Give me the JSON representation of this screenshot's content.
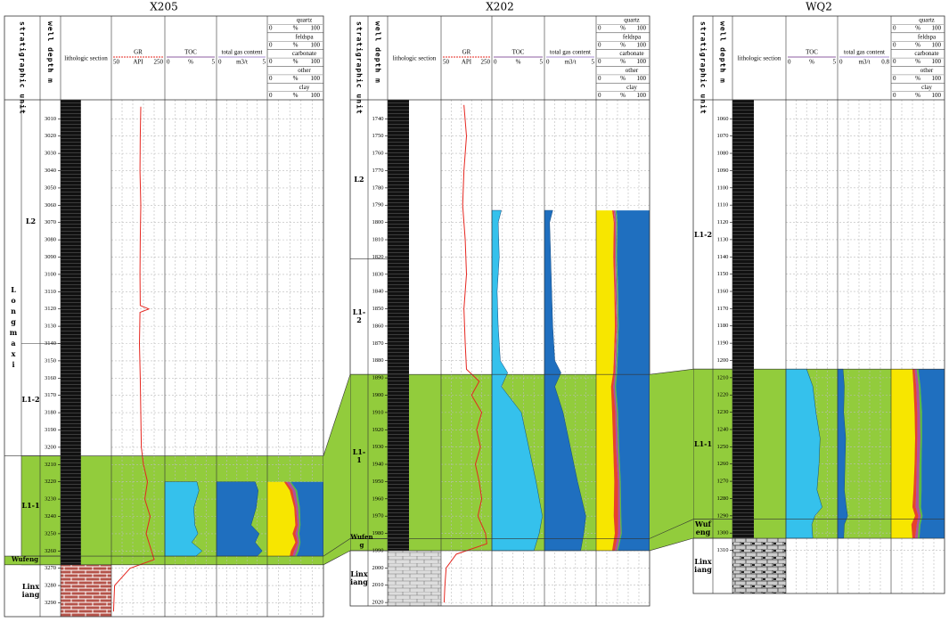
{
  "columns": {
    "strat": "stratigraphic unit",
    "depth": "well depth m",
    "litho": "lithologic section",
    "gr": {
      "name": "GR",
      "min": 50,
      "unit": "API",
      "max": 250,
      "color": "#e5261f"
    },
    "toc": {
      "name": "TOC",
      "min": 0,
      "unit": "%",
      "max": 5,
      "color": "#35c1ec"
    },
    "gas": {
      "name": "total gas content",
      "min": 0,
      "unit": "m3/t",
      "color": "#1f6fbf"
    },
    "minerals": [
      {
        "name": "quartz",
        "color": "#f7e600"
      },
      {
        "name": "feldspa",
        "color": "#e8412c"
      },
      {
        "name": "carbonate",
        "color": "#b04fa0"
      },
      {
        "name": "other",
        "color": "#58b947"
      },
      {
        "name": "clay",
        "color": "#1f6fbf"
      }
    ],
    "mineral_scale": {
      "min": 0,
      "unit": "%",
      "max": 100
    },
    "zone_color": "#92cc3c"
  },
  "wells": [
    {
      "name": "X205",
      "gas_max": 5,
      "depth_range": [
        2999,
        3298
      ],
      "depth_ticks": [
        3010,
        3020,
        3030,
        3040,
        3050,
        3060,
        3070,
        3080,
        3090,
        3100,
        3110,
        3120,
        3130,
        3140,
        3150,
        3160,
        3170,
        3180,
        3190,
        3200,
        3210,
        3220,
        3230,
        3240,
        3250,
        3260,
        3270,
        3280,
        3290
      ],
      "group": {
        "label": "Longmaxi",
        "top": 2999,
        "bottom": 3263
      },
      "units": [
        {
          "label": "L2",
          "top": 2999
        },
        {
          "label": "L1-2",
          "top": 3140
        },
        {
          "label": "L1-1",
          "top": 3205
        },
        {
          "label": "Wufeng",
          "top": 3263
        },
        {
          "label": "Linxiang",
          "top": 3268
        }
      ],
      "logs": {
        "gr": {
          "depth": [
            3003,
            3020,
            3040,
            3060,
            3080,
            3100,
            3118,
            3120,
            3122,
            3140,
            3160,
            3180,
            3200,
            3210,
            3220,
            3230,
            3240,
            3250,
            3260,
            3265,
            3270,
            3280,
            3295
          ],
          "values": [
            160,
            158,
            157,
            160,
            158,
            157,
            158,
            190,
            157,
            155,
            158,
            160,
            162,
            170,
            185,
            175,
            195,
            180,
            200,
            210,
            120,
            62,
            58
          ]
        },
        "toc": {
          "depth": [
            3220,
            3225,
            3235,
            3245,
            3250,
            3255,
            3260,
            3263
          ],
          "values": [
            3.1,
            3.3,
            2.8,
            2.9,
            3.2,
            2.6,
            3.6,
            3.0
          ]
        },
        "gas": {
          "depth": [
            3220,
            3225,
            3235,
            3245,
            3250,
            3255,
            3260,
            3263
          ],
          "values": [
            3.8,
            4.1,
            3.9,
            3.4,
            4.2,
            3.8,
            4.5,
            4.0
          ]
        },
        "minerals": {
          "depth": [
            3220,
            3225,
            3235,
            3245,
            3250,
            3255,
            3260,
            3263
          ],
          "fractions": [
            [
              30,
              40,
              48,
              50,
              45,
              50,
              42,
              40
            ],
            [
              4,
              5,
              3,
              4,
              5,
              4,
              6,
              5
            ],
            [
              6,
              5,
              4,
              3,
              4,
              3,
              5,
              4
            ],
            [
              2,
              3,
              3,
              2,
              3,
              2,
              3,
              3
            ],
            [
              58,
              47,
              42,
              41,
              43,
              41,
              44,
              48
            ]
          ]
        }
      }
    },
    {
      "name": "X202",
      "gas_max": 5,
      "depth_range": [
        1729,
        2022
      ],
      "depth_ticks": [
        1740,
        1750,
        1760,
        1770,
        1780,
        1790,
        1800,
        1810,
        1820,
        1830,
        1840,
        1850,
        1860,
        1870,
        1880,
        1890,
        1900,
        1910,
        1920,
        1930,
        1940,
        1950,
        1960,
        1970,
        1980,
        1990,
        2000,
        2010,
        2020
      ],
      "units": [
        {
          "label": "L2",
          "top": 1729
        },
        {
          "label": "L1-2",
          "top": 1821
        },
        {
          "label": "L1-1",
          "top": 1888
        },
        {
          "label": "Wufeng",
          "top": 1983
        },
        {
          "label": "Linxiang",
          "top": 1990
        }
      ],
      "logs": {
        "gr": {
          "depth": [
            1732,
            1750,
            1770,
            1790,
            1810,
            1830,
            1850,
            1870,
            1885,
            1892,
            1900,
            1910,
            1920,
            1930,
            1940,
            1950,
            1960,
            1970,
            1980,
            1986,
            1992,
            2000,
            2010,
            2020
          ],
          "values": [
            140,
            150,
            140,
            135,
            145,
            150,
            140,
            145,
            150,
            200,
            170,
            210,
            190,
            205,
            185,
            200,
            210,
            195,
            225,
            230,
            110,
            70,
            65,
            62
          ]
        },
        "toc": {
          "depth": [
            1793,
            1800,
            1820,
            1840,
            1860,
            1880,
            1887,
            1895,
            1910,
            1930,
            1950,
            1970,
            1980,
            1990
          ],
          "values": [
            0.9,
            0.6,
            0.7,
            0.5,
            0.6,
            0.8,
            1.5,
            0.9,
            2.8,
            3.5,
            4.2,
            4.8,
            4.5,
            4.0
          ]
        },
        "gas": {
          "depth": [
            1793,
            1800,
            1820,
            1840,
            1860,
            1880,
            1887,
            1895,
            1910,
            1930,
            1950,
            1970,
            1980,
            1990
          ],
          "values": [
            0.8,
            0.5,
            0.6,
            0.7,
            0.8,
            1.0,
            1.6,
            1.0,
            1.8,
            2.5,
            3.2,
            4.0,
            3.8,
            3.5
          ]
        },
        "minerals": {
          "depth": [
            1793,
            1800,
            1820,
            1840,
            1860,
            1880,
            1887,
            1895,
            1910,
            1930,
            1950,
            1970,
            1980,
            1990
          ],
          "fractions": [
            [
              30,
              33,
              32,
              34,
              35,
              33,
              32,
              28,
              30,
              32,
              34,
              33,
              35,
              30
            ],
            [
              3,
              2,
              3,
              2,
              3,
              2,
              3,
              4,
              6,
              5,
              7,
              8,
              6,
              5
            ],
            [
              3,
              3,
              2,
              3,
              2,
              3,
              2,
              3,
              3,
              4,
              3,
              4,
              5,
              4
            ],
            [
              2,
              2,
              2,
              2,
              2,
              2,
              2,
              2,
              2,
              2,
              2,
              2,
              2,
              2
            ],
            [
              62,
              60,
              61,
              59,
              58,
              60,
              61,
              63,
              59,
              57,
              54,
              53,
              52,
              59
            ]
          ]
        }
      }
    },
    {
      "name": "WQ2",
      "gas_max": 0.8,
      "depth_range": [
        1049,
        1335
      ],
      "depth_ticks": [
        1060,
        1070,
        1080,
        1090,
        1100,
        1110,
        1120,
        1130,
        1140,
        1150,
        1160,
        1170,
        1180,
        1190,
        1200,
        1210,
        1220,
        1230,
        1240,
        1250,
        1260,
        1270,
        1280,
        1290,
        1300,
        1310
      ],
      "units": [
        {
          "label": "L1-2",
          "top": 1049
        },
        {
          "label": "L1-1",
          "top": 1205
        },
        {
          "label": "Wufeng",
          "top": 1292
        },
        {
          "label": "Linxiang",
          "top": 1303
        }
      ],
      "logs": {
        "toc": {
          "depth": [
            1205,
            1215,
            1230,
            1245,
            1260,
            1275,
            1285,
            1290,
            1295,
            1303
          ],
          "values": [
            2.0,
            2.6,
            2.9,
            3.3,
            3.2,
            3.0,
            3.5,
            2.8,
            2.5,
            2.6
          ]
        },
        "gas": {
          "depth": [
            1205,
            1215,
            1230,
            1245,
            1260,
            1275,
            1285,
            1290,
            1295,
            1303
          ],
          "values": [
            0.08,
            0.1,
            0.09,
            0.12,
            0.11,
            0.1,
            0.13,
            0.15,
            0.1,
            0.09
          ]
        },
        "minerals": {
          "depth": [
            1205,
            1215,
            1230,
            1245,
            1260,
            1275,
            1285,
            1290,
            1295,
            1303
          ],
          "fractions": [
            [
              40,
              42,
              44,
              45,
              44,
              42,
              40,
              45,
              38,
              40
            ],
            [
              4,
              5,
              5,
              4,
              4,
              5,
              6,
              6,
              10,
              5
            ],
            [
              4,
              5,
              5,
              6,
              5,
              5,
              6,
              5,
              4,
              5
            ],
            [
              3,
              3,
              4,
              3,
              4,
              5,
              4,
              3,
              3,
              3
            ],
            [
              49,
              45,
              42,
              42,
              43,
              43,
              44,
              41,
              45,
              47
            ]
          ]
        }
      }
    }
  ]
}
